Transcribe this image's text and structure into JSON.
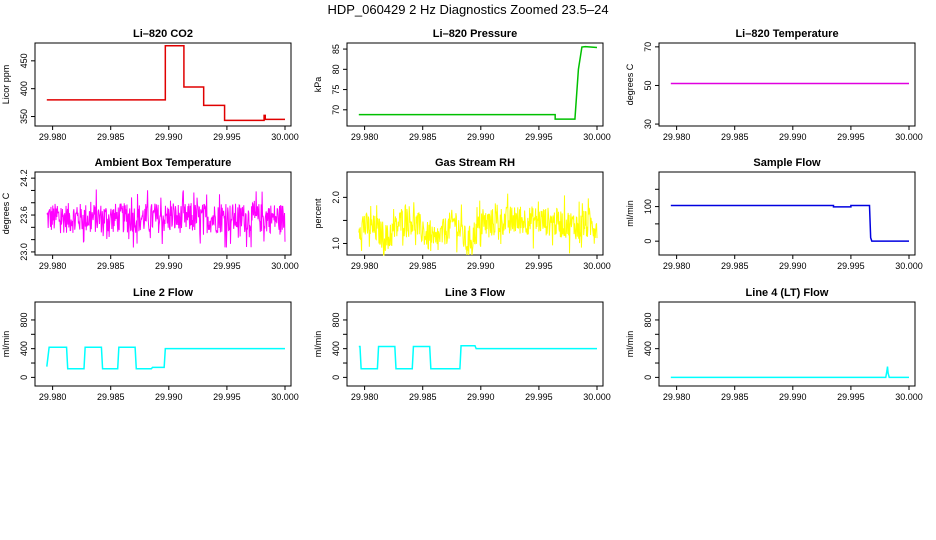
{
  "figure_title": "HDP_060429  2 Hz Diagnostics Zoomed 23.5–24",
  "chart_data": [
    {
      "type": "line",
      "title": "Li–820 CO2",
      "xlabel": "",
      "ylabel": "Licor ppm",
      "color": "#e00000",
      "xlim": [
        29.979,
        30.0
      ],
      "ylim": [
        333,
        482
      ],
      "xticks": [
        29.98,
        29.985,
        29.99,
        29.995,
        30.0
      ],
      "xtick_labels": [
        "29.980",
        "29.985",
        "29.990",
        "29.995",
        "30.000"
      ],
      "yticks": [
        350,
        400,
        450
      ],
      "ytick_labels": [
        "350",
        "400",
        "450"
      ],
      "x": [
        29.9795,
        29.9897,
        29.9897,
        29.9913,
        29.9913,
        29.993,
        29.993,
        29.9948,
        29.9948,
        29.9982,
        29.9982,
        29.9983,
        29.9983,
        30.0
      ],
      "y": [
        380,
        380,
        477,
        477,
        403,
        403,
        370,
        370,
        343,
        343,
        352,
        352,
        345,
        345
      ]
    },
    {
      "type": "line",
      "title": "Li–820 Pressure",
      "xlabel": "",
      "ylabel": "kPa",
      "color": "#00c000",
      "xlim": [
        29.979,
        30.0
      ],
      "ylim": [
        66,
        86.5
      ],
      "xticks": [
        29.98,
        29.985,
        29.99,
        29.995,
        30.0
      ],
      "xtick_labels": [
        "29.980",
        "29.985",
        "29.990",
        "29.995",
        "30.000"
      ],
      "yticks": [
        70,
        75,
        80,
        85
      ],
      "ytick_labels": [
        "70",
        "75",
        "80",
        "85"
      ],
      "x": [
        29.9795,
        29.9964,
        29.9964,
        29.9981,
        29.9984,
        29.9987,
        29.999,
        30.0
      ],
      "y": [
        68.8,
        68.8,
        67.7,
        67.7,
        80,
        85.5,
        85.6,
        85.4
      ]
    },
    {
      "type": "line",
      "title": "Li–820 Temperature",
      "xlabel": "",
      "ylabel": "degrees C",
      "color": "#e000e0",
      "xlim": [
        29.979,
        30.0
      ],
      "ylim": [
        29,
        72
      ],
      "xticks": [
        29.98,
        29.985,
        29.99,
        29.995,
        30.0
      ],
      "xtick_labels": [
        "29.980",
        "29.985",
        "29.990",
        "29.995",
        "30.000"
      ],
      "yticks": [
        30,
        50,
        70
      ],
      "ytick_labels": [
        "30",
        "50",
        "70"
      ],
      "x": [
        29.9795,
        30.0
      ],
      "y": [
        51,
        51
      ]
    },
    {
      "type": "line",
      "title": "Ambient Box Temperature",
      "xlabel": "",
      "ylabel": "degrees C",
      "color": "#ff00ff",
      "xlim": [
        29.979,
        30.0
      ],
      "ylim": [
        22.95,
        24.3
      ],
      "xticks": [
        29.98,
        29.985,
        29.99,
        29.995,
        30.0
      ],
      "xtick_labels": [
        "29.980",
        "29.985",
        "29.990",
        "29.995",
        "30.000"
      ],
      "yticks": [
        23.0,
        23.2,
        23.4,
        23.6,
        23.8,
        24.0,
        24.2
      ],
      "ytick_labels": [
        "23.0",
        "",
        "",
        "23.6",
        "",
        "",
        "24.2"
      ],
      "x": [
        29.9795,
        30.0
      ],
      "y": [
        23.55,
        23.55
      ],
      "noise": {
        "center": 23.55,
        "amplitude": 0.7
      }
    },
    {
      "type": "line",
      "title": "Gas Stream RH",
      "xlabel": "",
      "ylabel": "percent",
      "color": "#ffff00",
      "xlim": [
        29.979,
        30.0
      ],
      "ylim": [
        0.75,
        2.55
      ],
      "xticks": [
        29.98,
        29.985,
        29.99,
        29.995,
        30.0
      ],
      "xtick_labels": [
        "29.980",
        "29.985",
        "29.990",
        "29.995",
        "30.000"
      ],
      "yticks": [
        1.0,
        1.5,
        2.0
      ],
      "ytick_labels": [
        "1.0",
        "",
        "2.0"
      ],
      "x": [
        29.9795,
        29.981,
        29.982,
        29.9835,
        29.9845,
        29.986,
        29.9878,
        29.9888,
        29.99,
        29.992,
        29.995,
        29.998,
        30.0
      ],
      "y": [
        1.4,
        1.3,
        1.1,
        1.6,
        1.4,
        1.0,
        1.5,
        1.0,
        1.4,
        1.5,
        1.5,
        1.4,
        1.4
      ],
      "noise": {
        "amplitude": 0.9
      }
    },
    {
      "type": "line",
      "title": "Sample Flow",
      "xlabel": "",
      "ylabel": "ml/min",
      "color": "#0000e0",
      "xlim": [
        29.979,
        30.0
      ],
      "ylim": [
        -40,
        200
      ],
      "xticks": [
        29.98,
        29.985,
        29.99,
        29.995,
        30.0
      ],
      "xtick_labels": [
        "29.980",
        "29.985",
        "29.990",
        "29.995",
        "30.000"
      ],
      "yticks": [
        0,
        50,
        100,
        150
      ],
      "ytick_labels": [
        "0",
        "",
        "100",
        ""
      ],
      "x": [
        29.9795,
        29.9935,
        29.9935,
        29.995,
        29.995,
        29.9966,
        29.9967,
        29.9968,
        30.0
      ],
      "y": [
        103,
        103,
        99,
        99,
        103,
        103,
        10,
        0,
        0
      ]
    },
    {
      "type": "line",
      "title": "Line 2 Flow",
      "xlabel": "",
      "ylabel": "ml/min",
      "color": "#00ffff",
      "xlim": [
        29.979,
        30.0
      ],
      "ylim": [
        -120,
        1050
      ],
      "xticks": [
        29.98,
        29.985,
        29.99,
        29.995,
        30.0
      ],
      "xtick_labels": [
        "29.980",
        "29.985",
        "29.990",
        "29.995",
        "30.000"
      ],
      "yticks": [
        0,
        200,
        400,
        600,
        800
      ],
      "ytick_labels": [
        "0",
        "",
        "400",
        "",
        "800"
      ],
      "x": [
        29.9795,
        29.9797,
        29.9798,
        29.9812,
        29.9813,
        29.9827,
        29.9828,
        29.9842,
        29.9843,
        29.9856,
        29.9857,
        29.9871,
        29.9872,
        29.9885,
        29.9886,
        29.9896,
        29.9897,
        30.0
      ],
      "y": [
        150,
        420,
        420,
        420,
        120,
        120,
        420,
        420,
        120,
        120,
        420,
        420,
        120,
        120,
        140,
        140,
        400,
        400
      ]
    },
    {
      "type": "line",
      "title": "Line 3 Flow",
      "xlabel": "",
      "ylabel": "ml/min",
      "color": "#00ffff",
      "xlim": [
        29.979,
        30.0
      ],
      "ylim": [
        -120,
        1050
      ],
      "xticks": [
        29.98,
        29.985,
        29.99,
        29.995,
        30.0
      ],
      "xtick_labels": [
        "29.980",
        "29.985",
        "29.990",
        "29.995",
        "30.000"
      ],
      "yticks": [
        0,
        200,
        400,
        600,
        800
      ],
      "ytick_labels": [
        "0",
        "",
        "400",
        "",
        "800"
      ],
      "x": [
        29.9795,
        29.9796,
        29.9797,
        29.9811,
        29.9812,
        29.9826,
        29.9827,
        29.9841,
        29.9842,
        29.9856,
        29.9857,
        29.987,
        29.9871,
        29.9882,
        29.9883,
        29.9895,
        29.9896,
        30.0
      ],
      "y": [
        430,
        430,
        120,
        120,
        430,
        430,
        120,
        120,
        430,
        430,
        120,
        120,
        120,
        120,
        440,
        440,
        400,
        400
      ]
    },
    {
      "type": "line",
      "title": "Line 4 (LT) Flow",
      "xlabel": "",
      "ylabel": "ml/min",
      "color": "#00ffff",
      "xlim": [
        29.979,
        30.0
      ],
      "ylim": [
        -120,
        1050
      ],
      "xticks": [
        29.98,
        29.985,
        29.99,
        29.995,
        30.0
      ],
      "xtick_labels": [
        "29.980",
        "29.985",
        "29.990",
        "29.995",
        "30.000"
      ],
      "yticks": [
        0,
        200,
        400,
        600,
        800
      ],
      "ytick_labels": [
        "0",
        "",
        "400",
        "",
        "800"
      ],
      "x": [
        29.9795,
        29.998,
        29.9981,
        29.99815,
        29.9982,
        29.9983,
        30.0
      ],
      "y": [
        0,
        0,
        90,
        150,
        60,
        0,
        0
      ]
    }
  ]
}
